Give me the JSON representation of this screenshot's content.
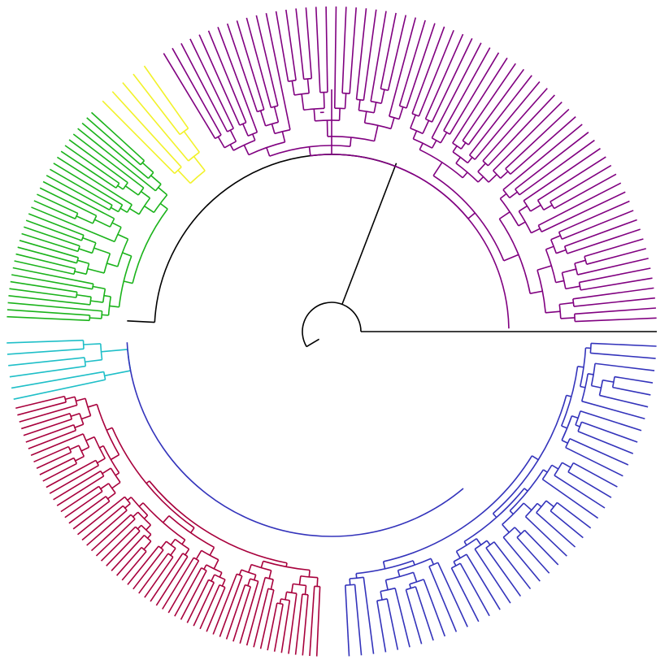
{
  "diagram": {
    "type": "circular-dendrogram",
    "root_color": "#000000",
    "clades": [
      {
        "key": "purple",
        "color": "#800080",
        "leaves": 68
      },
      {
        "key": "yellow",
        "color": "#f2f22a",
        "leaves": 5
      },
      {
        "key": "green",
        "color": "#1bb31b",
        "leaves": 33
      },
      {
        "key": "cyan",
        "color": "#1fbfc8",
        "leaves": 6
      },
      {
        "key": "crimson",
        "color": "#a8003c",
        "leaves": 60
      },
      {
        "key": "blue",
        "color": "#3333bb",
        "leaves": 40
      }
    ]
  }
}
